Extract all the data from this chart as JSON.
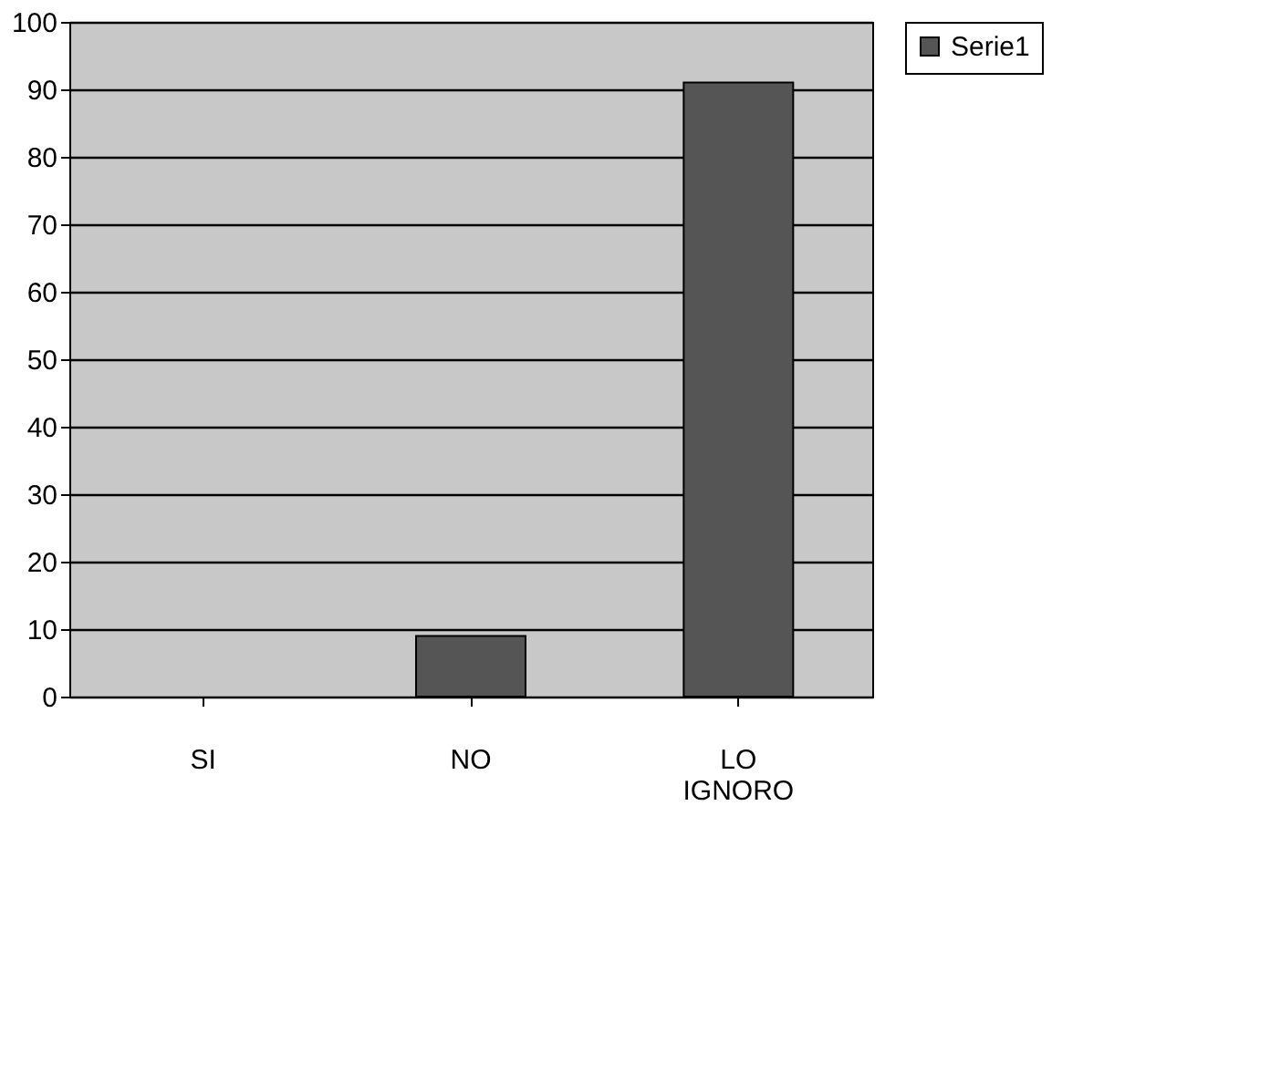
{
  "chart_data": {
    "type": "bar",
    "categories": [
      "SI",
      "NO",
      "LO IGNORO"
    ],
    "series": [
      {
        "name": "Serie1",
        "color": "#555555",
        "values": [
          0,
          9,
          91
        ]
      }
    ],
    "ylim": [
      0,
      100
    ],
    "yticks": [
      0,
      10,
      20,
      30,
      40,
      50,
      60,
      70,
      80,
      90,
      100
    ],
    "grid": "y",
    "legend": "right"
  }
}
